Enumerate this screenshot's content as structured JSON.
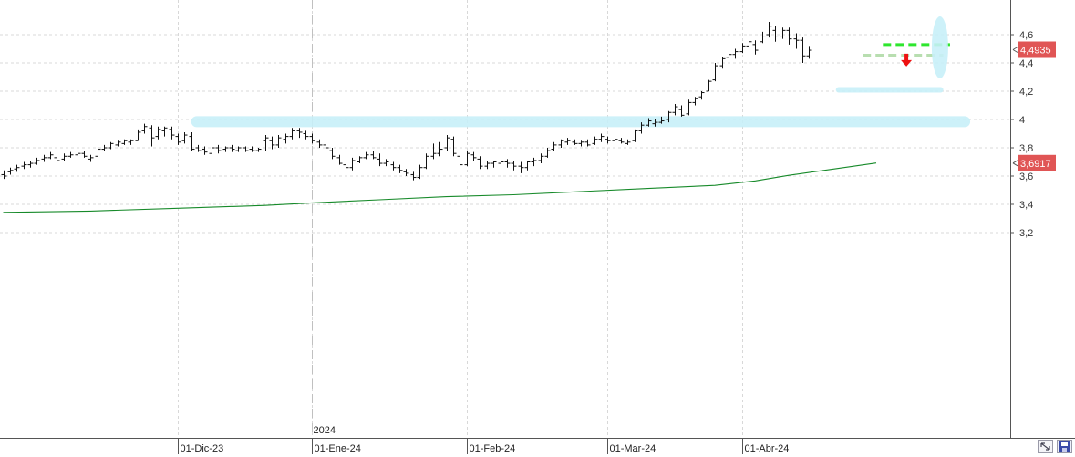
{
  "chart_data": {
    "type": "ohlc",
    "y_ticks": [
      "4,6",
      "4,4",
      "4,2",
      "4",
      "3,8",
      "3,6",
      "3,4",
      "3,2"
    ],
    "y_tick_values": [
      4.6,
      4.4,
      4.2,
      4.0,
      3.8,
      3.6,
      3.4,
      3.2
    ],
    "ylim": [
      3.18,
      4.76
    ],
    "x_labels": [
      {
        "label": "01-Dic-23",
        "bar": 26
      },
      {
        "label": "01-Ene-24",
        "bar": 46
      },
      {
        "label": "01-Feb-24",
        "bar": 69
      },
      {
        "label": "01-Mar-24",
        "bar": 90
      },
      {
        "label": "01-Abr-24",
        "bar": 110
      }
    ],
    "year_marker": {
      "label": "2024",
      "bar": 46
    },
    "grid": true,
    "last_price_label": "4,4935",
    "last_price": 4.4935,
    "ma_label": "3,6917",
    "ma_value": 3.6917,
    "ohlc": [
      [
        3.61,
        3.64,
        3.58,
        3.6
      ],
      [
        3.63,
        3.66,
        3.61,
        3.64
      ],
      [
        3.65,
        3.68,
        3.63,
        3.66
      ],
      [
        3.67,
        3.7,
        3.65,
        3.68
      ],
      [
        3.68,
        3.71,
        3.66,
        3.69
      ],
      [
        3.69,
        3.73,
        3.68,
        3.71
      ],
      [
        3.72,
        3.75,
        3.7,
        3.73
      ],
      [
        3.73,
        3.77,
        3.72,
        3.75
      ],
      [
        3.73,
        3.75,
        3.69,
        3.71
      ],
      [
        3.72,
        3.76,
        3.71,
        3.74
      ],
      [
        3.74,
        3.77,
        3.73,
        3.75
      ],
      [
        3.75,
        3.78,
        3.74,
        3.76
      ],
      [
        3.76,
        3.78,
        3.73,
        3.74
      ],
      [
        3.72,
        3.75,
        3.7,
        3.73
      ],
      [
        3.74,
        3.8,
        3.73,
        3.79
      ],
      [
        3.79,
        3.82,
        3.78,
        3.8
      ],
      [
        3.8,
        3.84,
        3.79,
        3.83
      ],
      [
        3.82,
        3.85,
        3.81,
        3.84
      ],
      [
        3.83,
        3.86,
        3.82,
        3.85
      ],
      [
        3.84,
        3.86,
        3.82,
        3.85
      ],
      [
        3.85,
        3.93,
        3.85,
        3.91
      ],
      [
        3.92,
        3.97,
        3.9,
        3.95
      ],
      [
        3.94,
        3.96,
        3.81,
        3.87
      ],
      [
        3.88,
        3.95,
        3.86,
        3.93
      ],
      [
        3.92,
        3.95,
        3.88,
        3.94
      ],
      [
        3.93,
        3.95,
        3.86,
        3.89
      ],
      [
        3.88,
        3.9,
        3.82,
        3.84
      ],
      [
        3.85,
        3.91,
        3.83,
        3.89
      ],
      [
        3.88,
        3.91,
        3.78,
        3.79
      ],
      [
        3.8,
        3.82,
        3.77,
        3.78
      ],
      [
        3.79,
        3.81,
        3.75,
        3.77
      ],
      [
        3.76,
        3.82,
        3.74,
        3.8
      ],
      [
        3.8,
        3.82,
        3.76,
        3.78
      ],
      [
        3.79,
        3.81,
        3.77,
        3.8
      ],
      [
        3.8,
        3.82,
        3.77,
        3.79
      ],
      [
        3.78,
        3.81,
        3.77,
        3.8
      ],
      [
        3.8,
        3.81,
        3.77,
        3.78
      ],
      [
        3.79,
        3.81,
        3.77,
        3.78
      ],
      [
        3.78,
        3.8,
        3.77,
        3.79
      ],
      [
        3.85,
        3.89,
        3.78,
        3.87
      ],
      [
        3.85,
        3.88,
        3.79,
        3.82
      ],
      [
        3.82,
        3.89,
        3.8,
        3.87
      ],
      [
        3.86,
        3.9,
        3.83,
        3.88
      ],
      [
        3.88,
        3.94,
        3.86,
        3.92
      ],
      [
        3.92,
        3.94,
        3.87,
        3.91
      ],
      [
        3.9,
        3.92,
        3.86,
        3.88
      ],
      [
        3.88,
        3.9,
        3.83,
        3.85
      ],
      [
        3.84,
        3.86,
        3.8,
        3.82
      ],
      [
        3.82,
        3.84,
        3.78,
        3.8
      ],
      [
        3.78,
        3.8,
        3.72,
        3.74
      ],
      [
        3.73,
        3.75,
        3.68,
        3.69
      ],
      [
        3.68,
        3.7,
        3.65,
        3.66
      ],
      [
        3.66,
        3.73,
        3.64,
        3.71
      ],
      [
        3.7,
        3.74,
        3.69,
        3.73
      ],
      [
        3.73,
        3.77,
        3.72,
        3.75
      ],
      [
        3.75,
        3.78,
        3.72,
        3.73
      ],
      [
        3.72,
        3.76,
        3.67,
        3.69
      ],
      [
        3.69,
        3.72,
        3.67,
        3.7
      ],
      [
        3.68,
        3.7,
        3.64,
        3.66
      ],
      [
        3.66,
        3.68,
        3.62,
        3.64
      ],
      [
        3.63,
        3.65,
        3.6,
        3.62
      ],
      [
        3.61,
        3.63,
        3.57,
        3.59
      ],
      [
        3.59,
        3.68,
        3.58,
        3.66
      ],
      [
        3.66,
        3.76,
        3.65,
        3.74
      ],
      [
        3.74,
        3.83,
        3.72,
        3.76
      ],
      [
        3.76,
        3.84,
        3.74,
        3.79
      ],
      [
        3.8,
        3.89,
        3.78,
        3.87
      ],
      [
        3.86,
        3.88,
        3.74,
        3.76
      ],
      [
        3.74,
        3.77,
        3.64,
        3.68
      ],
      [
        3.68,
        3.78,
        3.67,
        3.76
      ],
      [
        3.75,
        3.77,
        3.71,
        3.73
      ],
      [
        3.72,
        3.74,
        3.65,
        3.67
      ],
      [
        3.67,
        3.71,
        3.65,
        3.69
      ],
      [
        3.69,
        3.71,
        3.66,
        3.7
      ],
      [
        3.69,
        3.72,
        3.66,
        3.7
      ],
      [
        3.7,
        3.72,
        3.66,
        3.69
      ],
      [
        3.69,
        3.71,
        3.64,
        3.67
      ],
      [
        3.67,
        3.7,
        3.62,
        3.66
      ],
      [
        3.66,
        3.71,
        3.64,
        3.7
      ],
      [
        3.7,
        3.73,
        3.67,
        3.71
      ],
      [
        3.71,
        3.76,
        3.69,
        3.74
      ],
      [
        3.74,
        3.8,
        3.73,
        3.78
      ],
      [
        3.79,
        3.84,
        3.78,
        3.82
      ],
      [
        3.82,
        3.86,
        3.8,
        3.85
      ],
      [
        3.84,
        3.87,
        3.82,
        3.85
      ],
      [
        3.84,
        3.86,
        3.82,
        3.83
      ],
      [
        3.83,
        3.85,
        3.81,
        3.84
      ],
      [
        3.84,
        3.86,
        3.81,
        3.82
      ],
      [
        3.83,
        3.88,
        3.82,
        3.86
      ],
      [
        3.86,
        3.9,
        3.84,
        3.88
      ],
      [
        3.86,
        3.88,
        3.83,
        3.85
      ],
      [
        3.85,
        3.87,
        3.84,
        3.86
      ],
      [
        3.85,
        3.87,
        3.83,
        3.84
      ],
      [
        3.83,
        3.86,
        3.82,
        3.84
      ],
      [
        3.85,
        3.93,
        3.84,
        3.92
      ],
      [
        3.92,
        3.98,
        3.9,
        3.96
      ],
      [
        3.96,
        4.01,
        3.95,
        3.99
      ],
      [
        3.97,
        4.0,
        3.95,
        3.98
      ],
      [
        3.98,
        4.02,
        3.97,
        3.99
      ],
      [
        4.0,
        4.06,
        3.98,
        4.05
      ],
      [
        4.05,
        4.11,
        4.03,
        4.09
      ],
      [
        4.07,
        4.1,
        4.02,
        4.03
      ],
      [
        4.04,
        4.14,
        4.03,
        4.12
      ],
      [
        4.12,
        4.16,
        4.1,
        4.15
      ],
      [
        4.16,
        4.2,
        4.14,
        4.19
      ],
      [
        4.2,
        4.28,
        4.2,
        4.27
      ],
      [
        4.28,
        4.4,
        4.27,
        4.38
      ],
      [
        4.38,
        4.44,
        4.36,
        4.43
      ],
      [
        4.44,
        4.48,
        4.42,
        4.46
      ],
      [
        4.46,
        4.5,
        4.43,
        4.48
      ],
      [
        4.48,
        4.54,
        4.47,
        4.52
      ],
      [
        4.52,
        4.57,
        4.5,
        4.55
      ],
      [
        4.53,
        4.56,
        4.46,
        4.49
      ],
      [
        4.55,
        4.62,
        4.54,
        4.59
      ],
      [
        4.6,
        4.69,
        4.58,
        4.66
      ],
      [
        4.63,
        4.66,
        4.55,
        4.59
      ],
      [
        4.59,
        4.65,
        4.57,
        4.63
      ],
      [
        4.63,
        4.65,
        4.53,
        4.57
      ],
      [
        4.57,
        4.61,
        4.5,
        4.56
      ],
      [
        4.56,
        4.58,
        4.4,
        4.45
      ],
      [
        4.45,
        4.52,
        4.43,
        4.49
      ]
    ],
    "moving_average": [
      [
        0,
        3.343
      ],
      [
        13,
        3.352
      ],
      [
        26,
        3.372
      ],
      [
        39,
        3.392
      ],
      [
        46,
        3.41
      ],
      [
        56,
        3.432
      ],
      [
        66,
        3.454
      ],
      [
        76,
        3.468
      ],
      [
        86,
        3.49
      ],
      [
        96,
        3.512
      ],
      [
        106,
        3.534
      ],
      [
        112,
        3.566
      ],
      [
        117,
        3.605
      ],
      [
        124,
        3.652
      ],
      [
        130,
        3.692
      ]
    ],
    "levels": [
      {
        "name": "resistance-band",
        "value": 3.985,
        "from_bar": 28,
        "to_bar": 144,
        "color": "#c8f0f8"
      },
      {
        "name": "support-band",
        "value": 4.21,
        "from_bar": 124,
        "to_bar": 140,
        "color": "#c8f0f8"
      },
      {
        "name": "support-dashed",
        "value": 4.53,
        "from_bar": 131,
        "to_bar": 141,
        "color": "#2ee62e"
      },
      {
        "name": "trigger-dashed",
        "value": 4.455,
        "from_bar": 128,
        "to_bar": 140,
        "color": "#b8deb0"
      }
    ],
    "highlight": {
      "bar": 139.5,
      "value": 4.51,
      "color": "#c8f0f8"
    },
    "signal_arrow": {
      "bar": 134.5,
      "value": 4.42,
      "color": "#ee1111"
    },
    "colors": {
      "bars": "#111111",
      "moving_average": "#178a2a",
      "price_tag": "#e05555",
      "grid": "#d8d8d8",
      "axis": "#555555"
    }
  }
}
